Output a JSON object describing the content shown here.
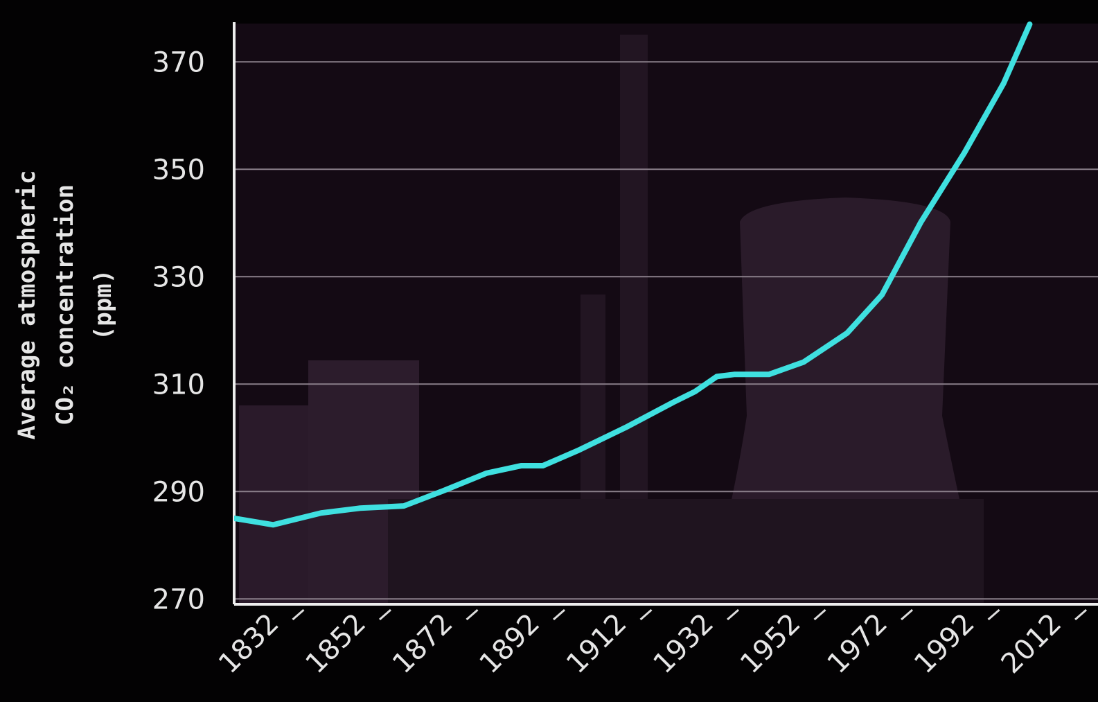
{
  "chart_data": {
    "type": "line",
    "y_label": [
      "Average atmospheric",
      "CO₂ concentration",
      "(ppm)"
    ],
    "x": [
      1823,
      1832,
      1843,
      1852,
      1862,
      1871,
      1881,
      1889,
      1894,
      1902,
      1913,
      1924,
      1929,
      1934,
      1938,
      1946,
      1954,
      1964,
      1972,
      1981,
      1991,
      2000,
      2006
    ],
    "series": [
      {
        "name": "CO₂",
        "color": "#3fe0e0",
        "values": [
          285,
          283.8,
          286,
          286.9,
          287.3,
          290.1,
          293.4,
          294.8,
          294.8,
          297.6,
          301.9,
          306.6,
          308.6,
          311.4,
          311.8,
          311.8,
          314.1,
          319.5,
          326.6,
          340.2,
          353.1,
          366,
          377
        ]
      }
    ],
    "xlim": [
      1823,
      2019
    ],
    "xticks": [
      1832,
      1852,
      1872,
      1892,
      1912,
      1932,
      1952,
      1972,
      1992,
      2012
    ],
    "ylim": [
      269,
      377
    ],
    "yticks": [
      270,
      290,
      310,
      330,
      350,
      370
    ],
    "grid": true
  }
}
